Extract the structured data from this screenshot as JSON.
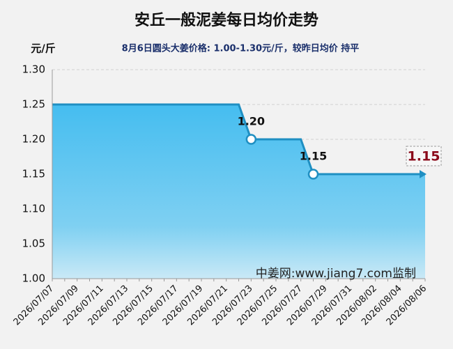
{
  "chart_data": {
    "type": "line",
    "title": "安丘一般泥姜每日均价走势",
    "subtitle": "8月6日圆头大姜价格: 1.00-1.30元/斤，较昨日均价 持平",
    "y_label": "元/斤",
    "watermark": "中姜网:www.jiang7.com监制",
    "categories": [
      "2026/07/07",
      null,
      "2026/07/09",
      null,
      "2026/07/11",
      null,
      "2026/07/13",
      null,
      "2026/07/15",
      null,
      "2026/07/17",
      null,
      "2026/07/19",
      null,
      "2026/07/21",
      null,
      "2026/07/23",
      null,
      "2026/07/25",
      null,
      "2026/07/27",
      null,
      "2026/07/29",
      null,
      "2026/07/31",
      null,
      "2026/08/02",
      null,
      "2026/08/04",
      null,
      "2026/08/06"
    ],
    "series": [
      {
        "name": "均价",
        "color": "#1f8fc2",
        "values": [
          1.25,
          1.25,
          1.25,
          1.25,
          1.25,
          1.25,
          1.25,
          1.25,
          1.25,
          1.25,
          1.25,
          1.25,
          1.25,
          1.25,
          1.25,
          1.25,
          1.2,
          1.2,
          1.2,
          1.2,
          1.2,
          1.15,
          1.15,
          1.15,
          1.15,
          1.15,
          1.15,
          1.15,
          1.15,
          1.15,
          1.15
        ],
        "value_labels": [
          null,
          null,
          null,
          null,
          null,
          null,
          null,
          null,
          null,
          null,
          null,
          null,
          null,
          null,
          null,
          null,
          "1.20",
          null,
          null,
          null,
          null,
          "1.15",
          null,
          null,
          null,
          null,
          null,
          null,
          null,
          null,
          "1.15"
        ]
      }
    ],
    "ylim": [
      1.0,
      1.3
    ],
    "yticks": [
      {
        "value": 1.0,
        "label": "1.00"
      },
      {
        "value": 1.05,
        "label": "1.05"
      },
      {
        "value": 1.1,
        "label": "1.10"
      },
      {
        "value": 1.15,
        "label": "1.15"
      },
      {
        "value": 1.2,
        "label": "1.20"
      },
      {
        "value": 1.25,
        "label": "1.25"
      },
      {
        "value": 1.3,
        "label": "1.30"
      }
    ],
    "grid": true
  }
}
